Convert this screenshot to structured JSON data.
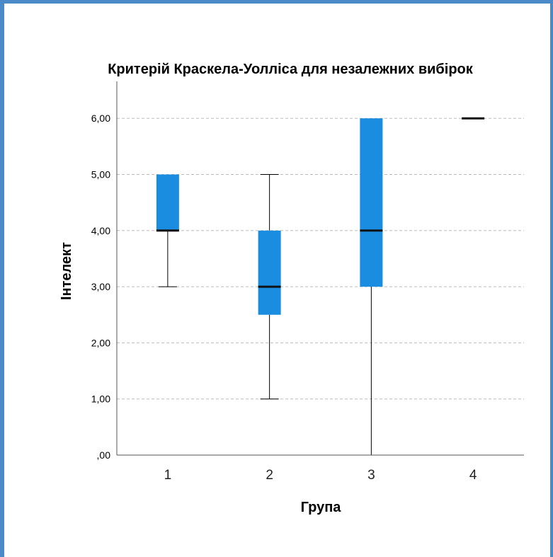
{
  "chart_data": {
    "type": "boxplot",
    "title": "Критерій Краскела-Уолліса для незалежних вибірок",
    "xlabel": "Група",
    "ylabel": "Інтелект",
    "ylim": [
      0,
      6.6
    ],
    "yticks": [
      0,
      1,
      2,
      3,
      4,
      5,
      6
    ],
    "ytick_labels": [
      ",00",
      "1,00",
      "2,00",
      "3,00",
      "4,00",
      "5,00",
      "6,00"
    ],
    "grid": "horizontal dashed",
    "box_color": "#1a8de0",
    "categories": [
      "1",
      "2",
      "3",
      "4"
    ],
    "boxes": [
      {
        "category": "1",
        "min": 3,
        "q1": 4,
        "median": 4,
        "q3": 5,
        "max": 5
      },
      {
        "category": "2",
        "min": 1,
        "q1": 2.5,
        "median": 3,
        "q3": 4,
        "max": 5
      },
      {
        "category": "3",
        "min": 0,
        "q1": 3,
        "median": 4,
        "q3": 6,
        "max": 6
      },
      {
        "category": "4",
        "min": 6,
        "q1": 6,
        "median": 6,
        "q3": 6,
        "max": 6
      }
    ]
  }
}
